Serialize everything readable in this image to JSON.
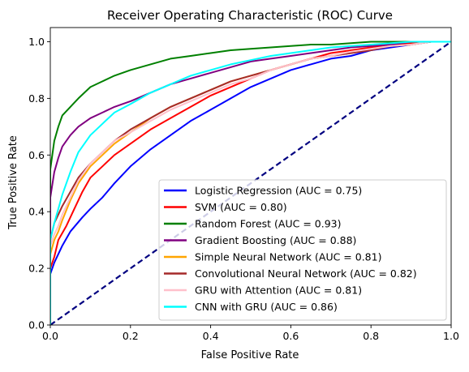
{
  "chart_data": {
    "type": "line",
    "title": "Receiver Operating Characteristic (ROC) Curve",
    "xlabel": "False Positive Rate",
    "ylabel": "True Positive Rate",
    "xlim": [
      0.0,
      1.0
    ],
    "ylim": [
      0.0,
      1.05
    ],
    "x_ticks": [
      "0.0",
      "0.2",
      "0.4",
      "0.6",
      "0.8",
      "1.0"
    ],
    "y_ticks": [
      "0.0",
      "0.2",
      "0.4",
      "0.6",
      "0.8",
      "1.0"
    ],
    "legend_position": "lower-right",
    "grid": false,
    "series": [
      {
        "name": "Logistic Regression (AUC = 0.75)",
        "color": "#0000ff",
        "x": [
          0.0,
          0.0,
          0.01,
          0.03,
          0.05,
          0.08,
          0.1,
          0.13,
          0.16,
          0.2,
          0.25,
          0.3,
          0.35,
          0.4,
          0.45,
          0.5,
          0.55,
          0.6,
          0.65,
          0.7,
          0.75,
          0.8,
          0.85,
          0.9,
          0.95,
          1.0
        ],
        "y": [
          0.0,
          0.18,
          0.22,
          0.28,
          0.33,
          0.38,
          0.41,
          0.45,
          0.5,
          0.56,
          0.62,
          0.67,
          0.72,
          0.76,
          0.8,
          0.84,
          0.87,
          0.9,
          0.92,
          0.94,
          0.95,
          0.97,
          0.98,
          0.99,
          1.0,
          1.0
        ]
      },
      {
        "name": "SVM (AUC = 0.80)",
        "color": "#ff0000",
        "x": [
          0.0,
          0.0,
          0.01,
          0.02,
          0.04,
          0.06,
          0.08,
          0.1,
          0.13,
          0.16,
          0.2,
          0.25,
          0.3,
          0.35,
          0.4,
          0.45,
          0.5,
          0.55,
          0.6,
          0.65,
          0.7,
          0.75,
          0.8,
          0.85,
          0.9,
          0.95,
          1.0
        ],
        "y": [
          0.0,
          0.2,
          0.24,
          0.3,
          0.35,
          0.41,
          0.47,
          0.52,
          0.56,
          0.6,
          0.64,
          0.69,
          0.73,
          0.77,
          0.81,
          0.84,
          0.87,
          0.9,
          0.92,
          0.94,
          0.96,
          0.97,
          0.98,
          0.99,
          0.995,
          1.0,
          1.0
        ]
      },
      {
        "name": "Random Forest (AUC = 0.93)",
        "color": "#008000",
        "x": [
          0.0,
          0.0,
          0.01,
          0.02,
          0.03,
          0.05,
          0.07,
          0.1,
          0.13,
          0.16,
          0.2,
          0.25,
          0.3,
          0.35,
          0.4,
          0.45,
          0.5,
          0.55,
          0.6,
          0.65,
          0.7,
          0.75,
          0.8,
          0.85,
          0.9,
          0.95,
          1.0
        ],
        "y": [
          0.0,
          0.55,
          0.65,
          0.7,
          0.74,
          0.77,
          0.8,
          0.84,
          0.86,
          0.88,
          0.9,
          0.92,
          0.94,
          0.95,
          0.96,
          0.97,
          0.975,
          0.98,
          0.985,
          0.99,
          0.99,
          0.995,
          1.0,
          1.0,
          1.0,
          1.0,
          1.0
        ]
      },
      {
        "name": "Gradient Boosting (AUC = 0.88)",
        "color": "#800080",
        "x": [
          0.0,
          0.0,
          0.01,
          0.02,
          0.03,
          0.05,
          0.07,
          0.1,
          0.13,
          0.16,
          0.2,
          0.25,
          0.3,
          0.35,
          0.4,
          0.45,
          0.5,
          0.55,
          0.6,
          0.65,
          0.7,
          0.75,
          0.8,
          0.85,
          0.9,
          0.95,
          1.0
        ],
        "y": [
          0.0,
          0.45,
          0.54,
          0.59,
          0.63,
          0.67,
          0.7,
          0.73,
          0.75,
          0.77,
          0.79,
          0.82,
          0.85,
          0.87,
          0.89,
          0.91,
          0.93,
          0.94,
          0.95,
          0.96,
          0.97,
          0.98,
          0.985,
          0.99,
          1.0,
          1.0,
          1.0
        ]
      },
      {
        "name": "Simple Neural Network (AUC = 0.81)",
        "color": "#ffa500",
        "x": [
          0.0,
          0.0,
          0.01,
          0.02,
          0.03,
          0.05,
          0.07,
          0.1,
          0.13,
          0.16,
          0.2,
          0.25,
          0.3,
          0.35,
          0.4,
          0.45,
          0.5,
          0.55,
          0.6,
          0.65,
          0.7,
          0.75,
          0.8,
          0.85,
          0.9,
          0.95,
          1.0
        ],
        "y": [
          0.0,
          0.25,
          0.3,
          0.33,
          0.37,
          0.44,
          0.5,
          0.56,
          0.6,
          0.64,
          0.68,
          0.73,
          0.77,
          0.8,
          0.83,
          0.86,
          0.88,
          0.9,
          0.92,
          0.94,
          0.95,
          0.96,
          0.975,
          0.985,
          0.99,
          1.0,
          1.0
        ]
      },
      {
        "name": "Convolutional Neural Network (AUC = 0.82)",
        "color": "#a52a2a",
        "x": [
          0.0,
          0.0,
          0.01,
          0.02,
          0.03,
          0.05,
          0.07,
          0.1,
          0.13,
          0.16,
          0.2,
          0.25,
          0.3,
          0.35,
          0.4,
          0.45,
          0.5,
          0.55,
          0.6,
          0.65,
          0.7,
          0.75,
          0.8,
          0.85,
          0.9,
          0.95,
          1.0
        ],
        "y": [
          0.0,
          0.3,
          0.36,
          0.39,
          0.42,
          0.47,
          0.52,
          0.57,
          0.61,
          0.65,
          0.69,
          0.73,
          0.77,
          0.8,
          0.83,
          0.86,
          0.88,
          0.9,
          0.92,
          0.94,
          0.95,
          0.96,
          0.97,
          0.985,
          0.99,
          1.0,
          1.0
        ]
      },
      {
        "name": "GRU with Attention (AUC = 0.81)",
        "color": "#ffc0cb",
        "x": [
          0.0,
          0.0,
          0.01,
          0.02,
          0.03,
          0.05,
          0.07,
          0.1,
          0.13,
          0.16,
          0.2,
          0.25,
          0.3,
          0.35,
          0.4,
          0.45,
          0.5,
          0.55,
          0.6,
          0.65,
          0.7,
          0.75,
          0.8,
          0.85,
          0.9,
          0.95,
          1.0
        ],
        "y": [
          0.0,
          0.28,
          0.32,
          0.35,
          0.39,
          0.45,
          0.51,
          0.57,
          0.61,
          0.65,
          0.68,
          0.72,
          0.76,
          0.79,
          0.82,
          0.85,
          0.87,
          0.9,
          0.92,
          0.94,
          0.95,
          0.965,
          0.975,
          0.985,
          0.99,
          1.0,
          1.0
        ]
      },
      {
        "name": "CNN with GRU (AUC = 0.86)",
        "color": "#00ffff",
        "x": [
          0.0,
          0.0,
          0.01,
          0.02,
          0.03,
          0.05,
          0.07,
          0.1,
          0.13,
          0.16,
          0.2,
          0.25,
          0.3,
          0.35,
          0.4,
          0.45,
          0.5,
          0.55,
          0.6,
          0.65,
          0.7,
          0.75,
          0.8,
          0.85,
          0.9,
          0.95,
          1.0
        ],
        "y": [
          0.0,
          0.3,
          0.36,
          0.41,
          0.46,
          0.54,
          0.61,
          0.67,
          0.71,
          0.75,
          0.78,
          0.82,
          0.85,
          0.88,
          0.9,
          0.92,
          0.935,
          0.95,
          0.96,
          0.97,
          0.98,
          0.985,
          0.99,
          0.995,
          1.0,
          1.0,
          1.0
        ]
      }
    ],
    "reference_line": {
      "x": [
        0.0,
        1.0
      ],
      "y": [
        0.0,
        1.0
      ],
      "color": "#000080",
      "style": "dashed"
    }
  }
}
